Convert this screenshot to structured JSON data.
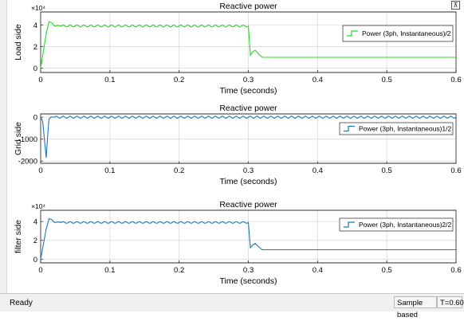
{
  "toolbar": {
    "dock_glyph": "⊼"
  },
  "status": {
    "ready": "Ready",
    "mode": "Sample based",
    "time": "T=0.600"
  },
  "chart_data": [
    {
      "type": "line",
      "title": "Reactive power",
      "xlabel": "Time (seconds)",
      "ylabel": "Load side",
      "exponent_label": "×10⁴",
      "xlim": [
        0,
        0.6
      ],
      "ylim": [
        -0.4,
        5.2
      ],
      "xticks": [
        0,
        0.1,
        0.2,
        0.3,
        0.4,
        0.5,
        0.6
      ],
      "yticks": [
        0,
        2,
        4
      ],
      "grid": true,
      "legend": "top-right",
      "series": [
        {
          "name": "Power (3ph, Instantaneous)/2",
          "color": "#22dd22",
          "x": [
            0,
            0.004,
            0.008,
            0.012,
            0.016,
            0.02,
            0.025,
            0.03,
            0.3,
            0.303,
            0.306,
            0.31,
            0.315,
            0.32,
            0.33,
            0.6
          ],
          "y": [
            0,
            1.6,
            3.2,
            4.3,
            4.2,
            3.9,
            3.95,
            3.9,
            3.9,
            1.2,
            1.5,
            1.65,
            1.3,
            1.0,
            1.0,
            1.0
          ],
          "ripple": {
            "from": 0.03,
            "to": 0.3,
            "amplitude": 0.08,
            "period": 0.01
          }
        }
      ]
    },
    {
      "type": "line",
      "title": "Reactive power",
      "xlabel": "Time (seconds)",
      "ylabel": "Grid side",
      "xlim": [
        0,
        0.6
      ],
      "ylim": [
        -2100,
        150
      ],
      "xticks": [
        0,
        0.1,
        0.2,
        0.3,
        0.4,
        0.5,
        0.6
      ],
      "yticks": [
        0,
        -1000,
        -2000
      ],
      "grid": true,
      "legend": "top-right",
      "series": [
        {
          "name": "Power (3ph, Instantaneous)1/2",
          "color": "#1f77b4",
          "x": [
            0,
            0.003,
            0.006,
            0.008,
            0.01,
            0.012,
            0.015,
            0.02,
            0.6
          ],
          "y": [
            0,
            -200,
            -1200,
            -1850,
            -900,
            -100,
            10,
            0,
            0
          ],
          "ripple": {
            "from": 0.02,
            "to": 0.6,
            "amplitude": 45,
            "period": 0.01
          }
        }
      ]
    },
    {
      "type": "line",
      "title": "Reactive power",
      "xlabel": "Time (seconds)",
      "ylabel": "filter side",
      "exponent_label": "×10⁴",
      "xlim": [
        0,
        0.6
      ],
      "ylim": [
        -0.4,
        5.2
      ],
      "xticks": [
        0,
        0.1,
        0.2,
        0.3,
        0.4,
        0.5,
        0.6
      ],
      "yticks": [
        0,
        2,
        4
      ],
      "grid": true,
      "legend": "top-right",
      "series": [
        {
          "name": "Power (3ph, Instantaneous)2/2",
          "color": "#1f77b4",
          "x": [
            0,
            0.004,
            0.008,
            0.012,
            0.016,
            0.02,
            0.025,
            0.03,
            0.3,
            0.303,
            0.306,
            0.31,
            0.315,
            0.32,
            0.33,
            0.6
          ],
          "y": [
            0,
            1.6,
            3.2,
            4.3,
            4.2,
            3.9,
            3.95,
            3.9,
            3.9,
            1.2,
            1.5,
            1.65,
            1.3,
            1.0,
            1.0,
            1.0
          ],
          "ripple": {
            "from": 0.03,
            "to": 0.3,
            "amplitude": 0.08,
            "period": 0.01
          }
        }
      ]
    }
  ]
}
